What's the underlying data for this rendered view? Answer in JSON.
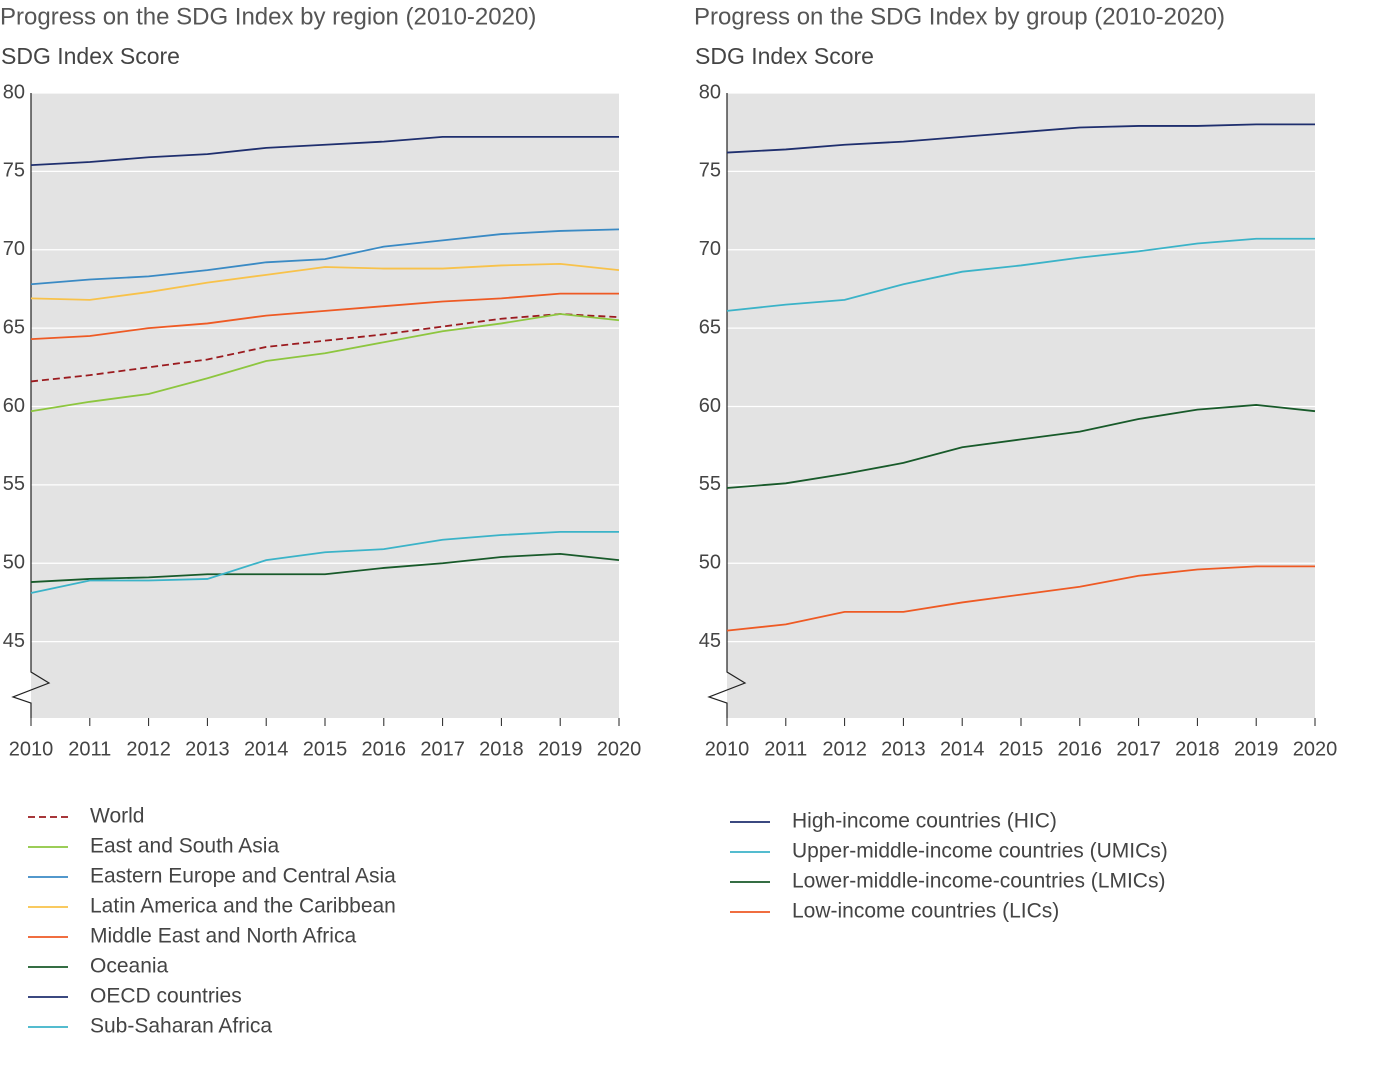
{
  "chart_data": [
    {
      "type": "line",
      "title": "Progress on the SDG Index by region (2010-2020)",
      "y_label": "SDG Index Score",
      "categories": [
        "2010",
        "2011",
        "2012",
        "2013",
        "2014",
        "2015",
        "2016",
        "2017",
        "2018",
        "2019",
        "2020"
      ],
      "ylim": [
        40,
        80
      ],
      "yticks": [
        45,
        50,
        55,
        60,
        65,
        70,
        75,
        80
      ],
      "grid": true,
      "series": [
        {
          "name": "World",
          "color": "#9b1b1f",
          "style": "dashed",
          "values": [
            61.6,
            62.0,
            62.5,
            63.0,
            63.8,
            64.2,
            64.6,
            65.1,
            65.6,
            65.9,
            65.7
          ]
        },
        {
          "name": "East and South Asia",
          "color": "#8dc63f",
          "values": [
            59.7,
            60.3,
            60.8,
            61.8,
            62.9,
            63.4,
            64.1,
            64.8,
            65.3,
            65.9,
            65.5
          ]
        },
        {
          "name": "Eastern Europe and Central Asia",
          "color": "#3a8ac4",
          "values": [
            67.8,
            68.1,
            68.3,
            68.7,
            69.2,
            69.4,
            70.2,
            70.6,
            71.0,
            71.2,
            71.3
          ]
        },
        {
          "name": "Latin America and the Caribbean",
          "color": "#f8c24a",
          "values": [
            66.9,
            66.8,
            67.3,
            67.9,
            68.4,
            68.9,
            68.8,
            68.8,
            69.0,
            69.1,
            68.7
          ]
        },
        {
          "name": "Middle East and North Africa",
          "color": "#ee5a24",
          "values": [
            64.3,
            64.5,
            65.0,
            65.3,
            65.8,
            66.1,
            66.4,
            66.7,
            66.9,
            67.2,
            67.2
          ]
        },
        {
          "name": "Oceania",
          "color": "#185a2a",
          "values": [
            48.8,
            49.0,
            49.1,
            49.3,
            49.3,
            49.3,
            49.7,
            50.0,
            50.4,
            50.6,
            50.2
          ]
        },
        {
          "name": "OECD countries",
          "color": "#1f2f6e",
          "values": [
            75.4,
            75.6,
            75.9,
            76.1,
            76.5,
            76.7,
            76.9,
            77.2,
            77.2,
            77.2,
            77.2
          ]
        },
        {
          "name": "Sub-Saharan Africa",
          "color": "#3bb3c8",
          "values": [
            48.1,
            48.9,
            48.9,
            49.0,
            50.2,
            50.7,
            50.9,
            51.5,
            51.8,
            52.0,
            52.0
          ]
        }
      ]
    },
    {
      "type": "line",
      "title": "Progress on the SDG Index by group (2010-2020)",
      "y_label": "SDG Index Score",
      "categories": [
        "2010",
        "2011",
        "2012",
        "2013",
        "2014",
        "2015",
        "2016",
        "2017",
        "2018",
        "2019",
        "2020"
      ],
      "ylim": [
        40,
        80
      ],
      "yticks": [
        45,
        50,
        55,
        60,
        65,
        70,
        75,
        80
      ],
      "grid": true,
      "series": [
        {
          "name": "High-income countries (HIC)",
          "color": "#1f2f6e",
          "values": [
            76.2,
            76.4,
            76.7,
            76.9,
            77.2,
            77.5,
            77.8,
            77.9,
            77.9,
            78.0,
            78.0
          ]
        },
        {
          "name": "Upper-middle-income countries (UMICs)",
          "color": "#3bb3c8",
          "values": [
            66.1,
            66.5,
            66.8,
            67.8,
            68.6,
            69.0,
            69.5,
            69.9,
            70.4,
            70.7,
            70.7
          ]
        },
        {
          "name": "Lower-middle-income-countries (LMICs)",
          "color": "#185a2a",
          "values": [
            54.8,
            55.1,
            55.7,
            56.4,
            57.4,
            57.9,
            58.4,
            59.2,
            59.8,
            60.1,
            59.7
          ]
        },
        {
          "name": "Low-income countries (LICs)",
          "color": "#ee5a24",
          "values": [
            45.7,
            46.1,
            46.9,
            46.9,
            47.5,
            48.0,
            48.5,
            49.2,
            49.6,
            49.8,
            49.8
          ]
        }
      ]
    }
  ]
}
